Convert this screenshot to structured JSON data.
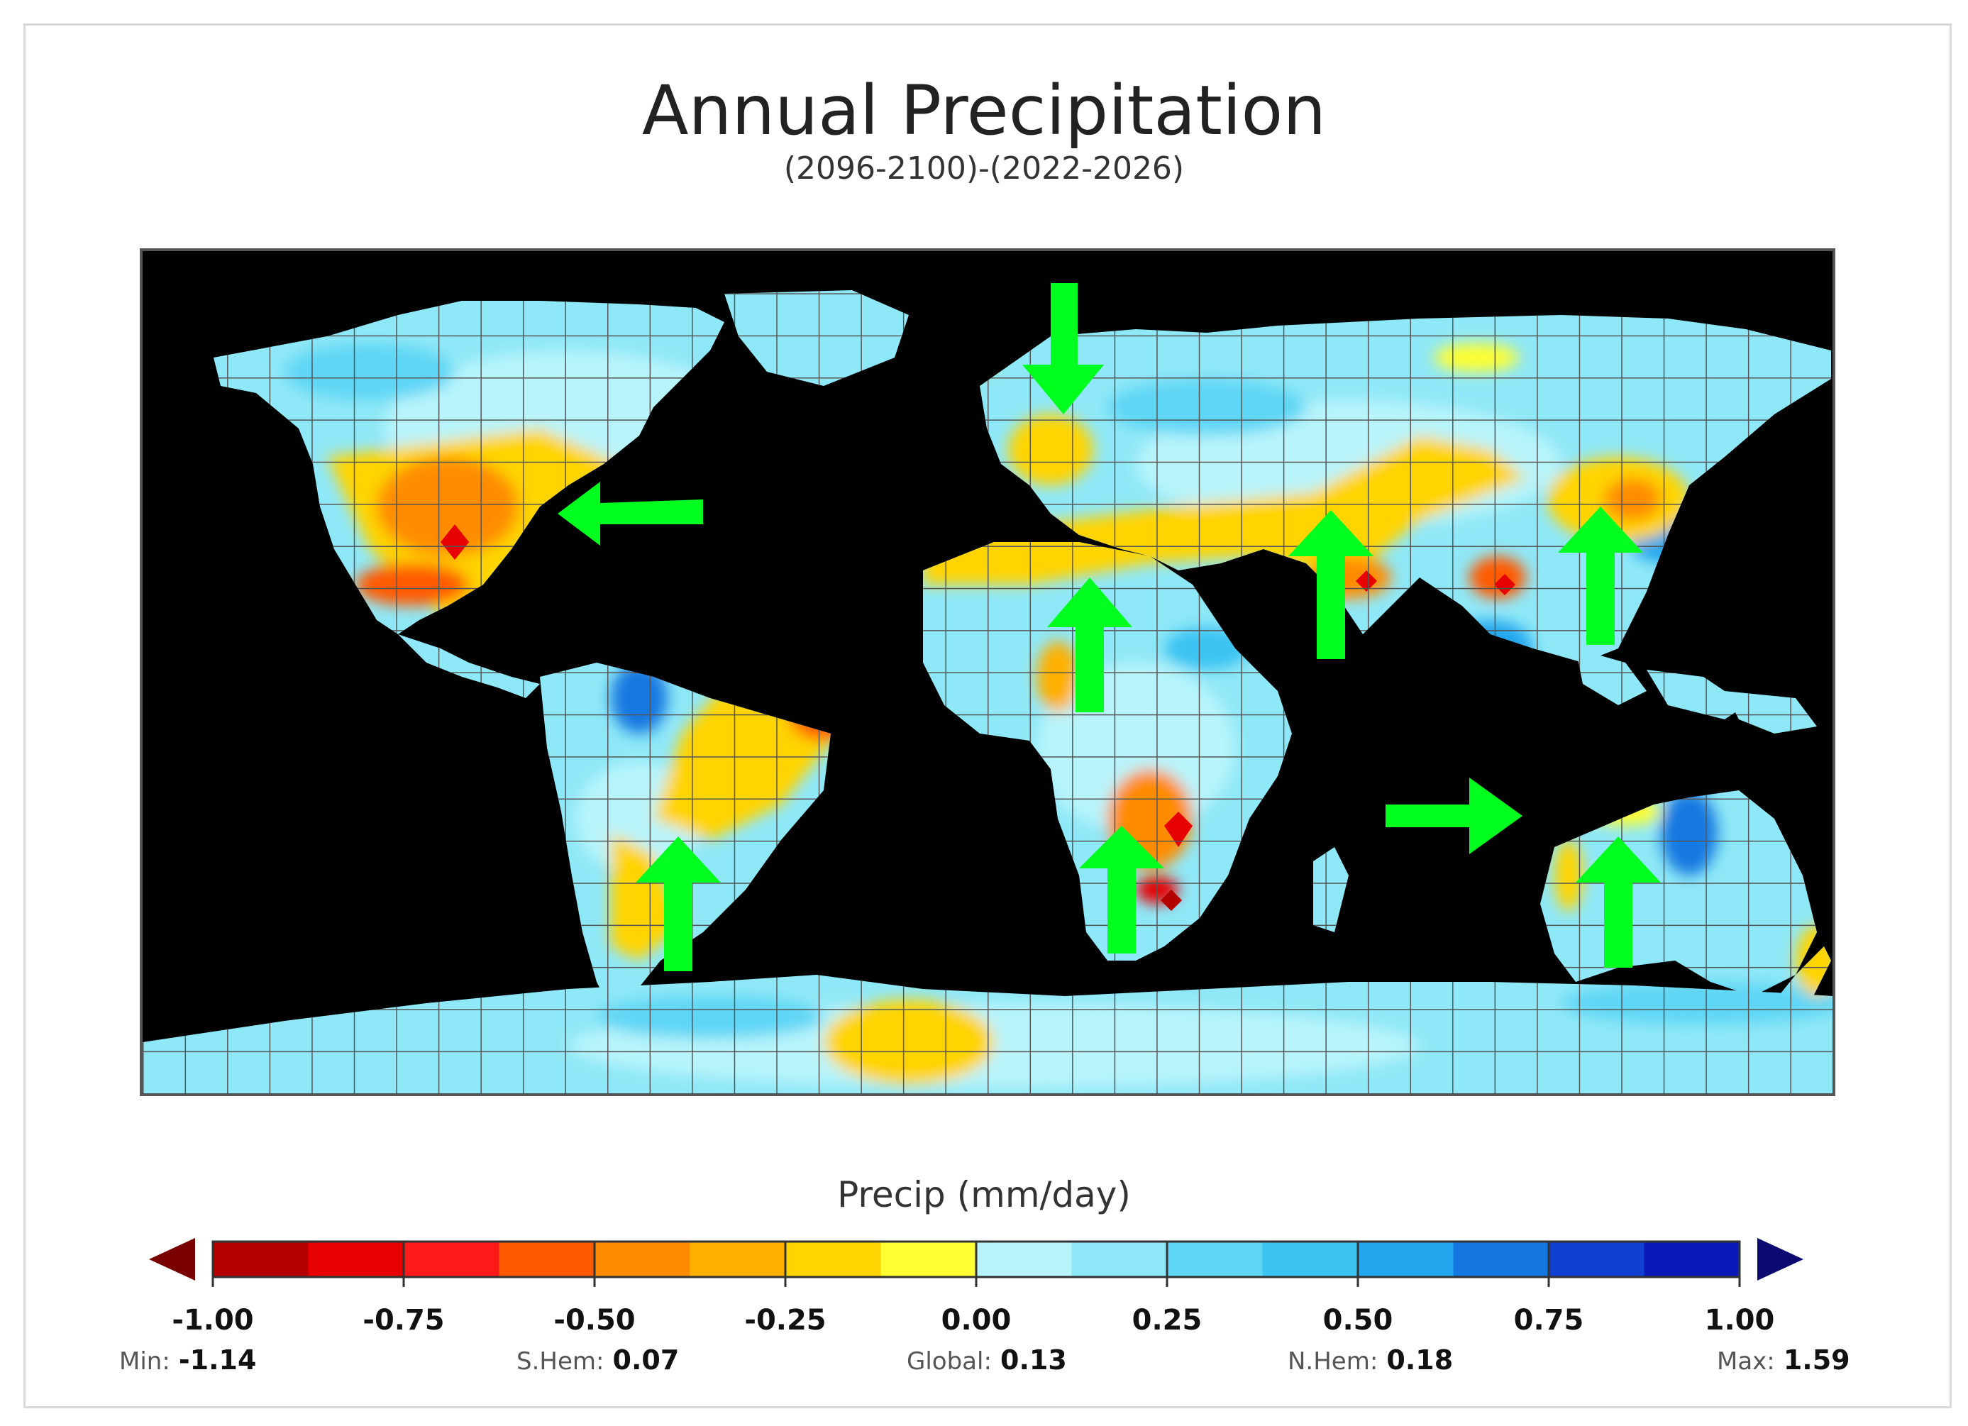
{
  "title": "Annual Precipitation",
  "subtitle": "(2096-2100)-(2022-2026)",
  "colorbar": {
    "title": "Precip (mm/day)",
    "ticks": [
      "-1.00",
      "-0.75",
      "-0.50",
      "-0.25",
      "0.00",
      "0.25",
      "0.50",
      "0.75",
      "1.00"
    ],
    "range": [
      -1.0,
      1.0
    ],
    "colors": [
      "#b50000",
      "#e60000",
      "#ff1a1a",
      "#ff5a00",
      "#ff8c00",
      "#ffb000",
      "#ffd400",
      "#ffff33",
      "#b8f4fb",
      "#8fe8f7",
      "#5fd6f5",
      "#3bc3f2",
      "#22a6ee",
      "#1478e0",
      "#1040d0",
      "#0a1ab8"
    ],
    "under_color": "#7a0000",
    "over_color": "#0a0a70"
  },
  "stats": {
    "min_label": "Min:",
    "min_value": "-1.14",
    "shem_label": "S.Hem:",
    "shem_value": "0.07",
    "global_label": "Global:",
    "global_value": "0.13",
    "nhem_label": "N.Hem:",
    "nhem_value": "0.18",
    "max_label": "Max:",
    "max_value": "1.59"
  },
  "map": {
    "background_color": "#000000",
    "grid": true,
    "arrow_color": "#00ff1e",
    "arrows": [
      {
        "region": "Southern United States",
        "direction": "left"
      },
      {
        "region": "Northern Europe",
        "direction": "down"
      },
      {
        "region": "West Africa",
        "direction": "up"
      },
      {
        "region": "Northern India",
        "direction": "up"
      },
      {
        "region": "Eastern China",
        "direction": "up"
      },
      {
        "region": "Southern Chile",
        "direction": "up"
      },
      {
        "region": "Southern Africa",
        "direction": "up"
      },
      {
        "region": "Southwest Australia",
        "direction": "right"
      },
      {
        "region": "Southeast Australia",
        "direction": "up"
      }
    ]
  }
}
